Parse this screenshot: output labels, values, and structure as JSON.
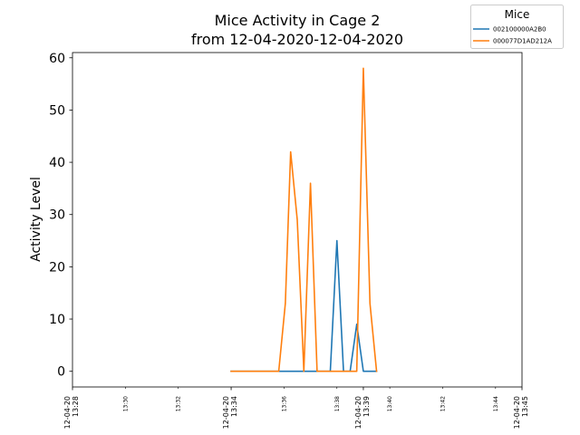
{
  "chart_data": {
    "type": "line",
    "title_line1": "Mice Activity in Cage 2",
    "title_line2": "from 12-04-2020-12-04-2020",
    "xlabel": "",
    "ylabel": "Activity Level",
    "xlim": [
      "13:28",
      "13:45"
    ],
    "ylim": [
      -3,
      61
    ],
    "y_ticks": [
      0,
      10,
      20,
      30,
      40,
      50,
      60
    ],
    "x_ticks_major": [
      {
        "t": "13:28",
        "line1": "12-04-20",
        "line2": "13:28"
      },
      {
        "t": "13:34",
        "line1": "12-04-20",
        "line2": "13:34"
      },
      {
        "t": "13:39",
        "line1": "12-04-20",
        "line2": "13:39"
      },
      {
        "t": "13:45",
        "line1": "12-04-20",
        "line2": "13:45"
      }
    ],
    "x_ticks_minor": [
      {
        "t": "13:30",
        "label": "13:30"
      },
      {
        "t": "13:32",
        "label": "13:32"
      },
      {
        "t": "13:36",
        "label": "13:36"
      },
      {
        "t": "13:38",
        "label": "13:38"
      },
      {
        "t": "13:40",
        "label": "13:40"
      },
      {
        "t": "13:42",
        "label": "13:42"
      },
      {
        "t": "13:44",
        "label": "13:44"
      }
    ],
    "legend": {
      "title": "Mice",
      "position": "upper right outside"
    },
    "grid": false,
    "series": [
      {
        "name": "002100000A2B0",
        "color": "#1f77b4",
        "points": [
          [
            "13:34:00",
            0
          ],
          [
            "13:35:48",
            0
          ],
          [
            "13:36:15",
            0
          ],
          [
            "13:36:45",
            0
          ],
          [
            "13:37:00",
            0
          ],
          [
            "13:37:15",
            0
          ],
          [
            "13:37:30",
            0
          ],
          [
            "13:37:45",
            0
          ],
          [
            "13:38:00",
            25
          ],
          [
            "13:38:15",
            0
          ],
          [
            "13:38:30",
            0
          ],
          [
            "13:38:45",
            9
          ],
          [
            "13:39:00",
            0
          ],
          [
            "13:39:15",
            0
          ],
          [
            "13:39:30",
            0
          ]
        ]
      },
      {
        "name": "000077D1AD212A",
        "color": "#ff7f0e",
        "points": [
          [
            "13:34:00",
            0
          ],
          [
            "13:35:48",
            0
          ],
          [
            "13:36:03",
            13
          ],
          [
            "13:36:15",
            42
          ],
          [
            "13:36:30",
            29
          ],
          [
            "13:36:45",
            0
          ],
          [
            "13:37:00",
            36
          ],
          [
            "13:37:15",
            0
          ],
          [
            "13:37:30",
            0
          ],
          [
            "13:37:45",
            0
          ],
          [
            "13:38:00",
            0
          ],
          [
            "13:38:15",
            0
          ],
          [
            "13:38:45",
            0
          ],
          [
            "13:39:00",
            58
          ],
          [
            "13:39:15",
            13
          ],
          [
            "13:39:30",
            0
          ]
        ]
      }
    ]
  }
}
